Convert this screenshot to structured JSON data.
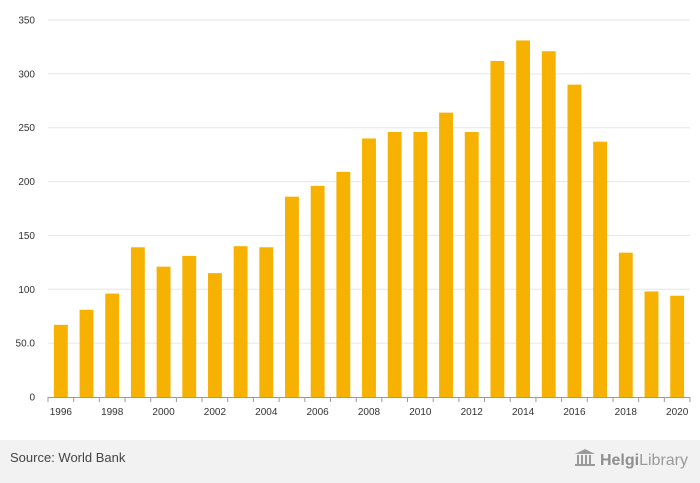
{
  "chart_data": {
    "type": "bar",
    "categories": [
      "1996",
      "1997",
      "1998",
      "1999",
      "2000",
      "2001",
      "2002",
      "2003",
      "2004",
      "2005",
      "2006",
      "2007",
      "2008",
      "2009",
      "2010",
      "2011",
      "2012",
      "2013",
      "2014",
      "2015",
      "2016",
      "2017",
      "2018",
      "2019",
      "2020"
    ],
    "values": [
      67,
      81,
      96,
      139,
      121,
      131,
      115,
      140,
      139,
      186,
      196,
      209,
      240,
      246,
      246,
      264,
      246,
      312,
      331,
      321,
      290,
      237,
      134,
      98,
      94
    ],
    "x_tick_labels": [
      "1996",
      "1998",
      "2000",
      "2002",
      "2004",
      "2006",
      "2008",
      "2010",
      "2012",
      "2014",
      "2016",
      "2018",
      "2020"
    ],
    "y_tick_labels": [
      "0",
      "50.0",
      "100",
      "150",
      "200",
      "250",
      "300",
      "350"
    ],
    "y_ticks": [
      0,
      50,
      100,
      150,
      200,
      250,
      300,
      350
    ],
    "ylim": [
      0,
      350
    ],
    "title": "",
    "xlabel": "",
    "ylabel": "",
    "grid": true,
    "bar_color": "#f7b100",
    "grid_color": "#e6e6e6"
  },
  "footer": {
    "source": "Source: World Bank",
    "logo_text_strong": "Helgi",
    "logo_text_rest": "Library",
    "logo_icon": "library-building-icon"
  }
}
